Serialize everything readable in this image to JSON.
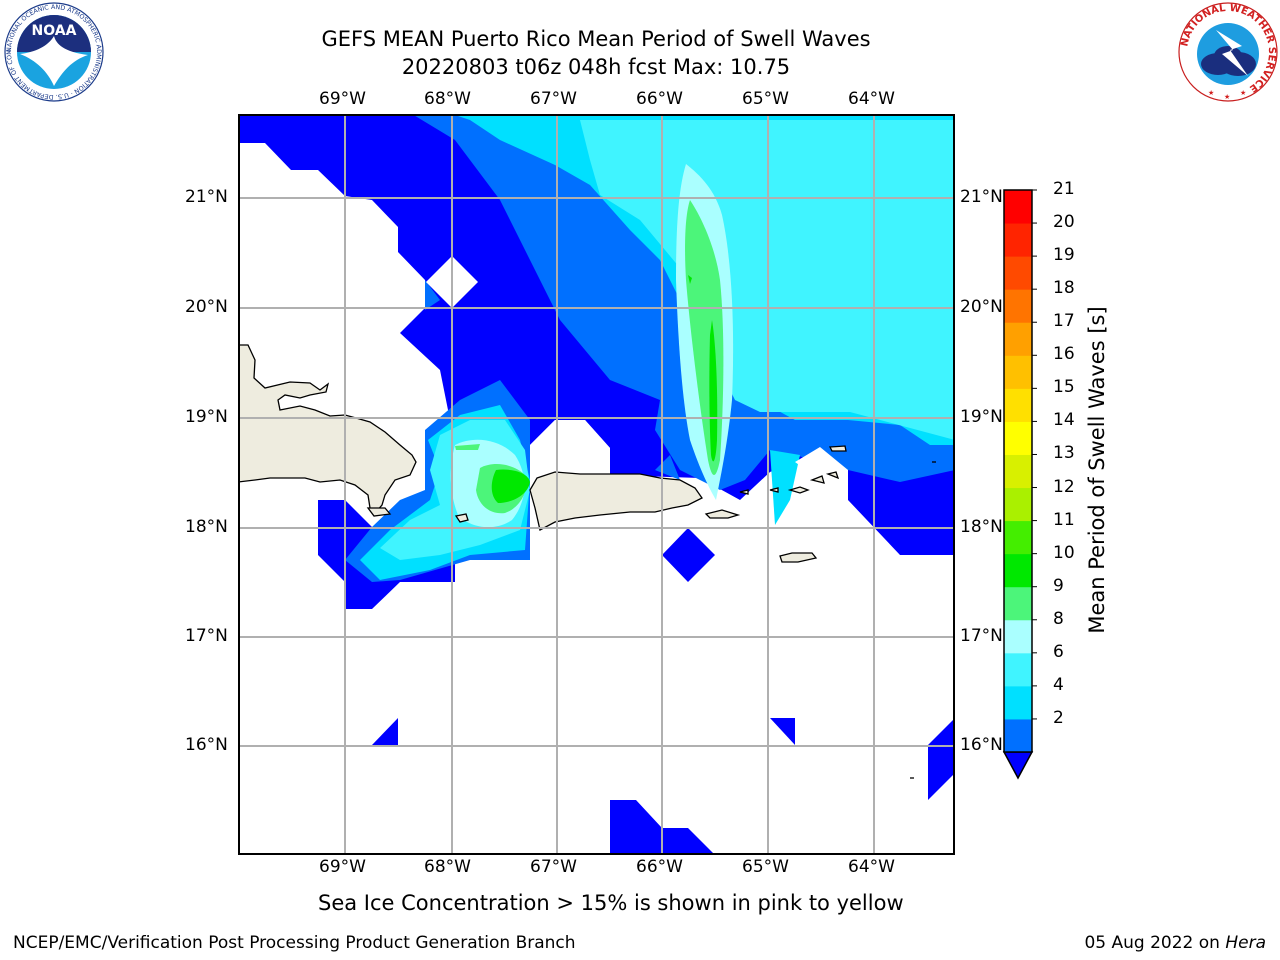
{
  "title": {
    "line1": "GEFS MEAN Puerto Rico Mean Period of Swell Waves",
    "line2": "20220803 t06z 048h fcst   Max: 10.75"
  },
  "axes": {
    "lon_labels": [
      "69°W",
      "68°W",
      "67°W",
      "66°W",
      "65°W",
      "64°W"
    ],
    "lat_labels": [
      "21°N",
      "20°N",
      "19°N",
      "18°N",
      "17°N",
      "16°N"
    ]
  },
  "colorbar": {
    "title": "Mean Period of Swell Waves [s]",
    "ticks": [
      "21",
      "20",
      "19",
      "18",
      "17",
      "16",
      "15",
      "14",
      "13",
      "12",
      "11",
      "10",
      "9",
      "8",
      "6",
      "4",
      "2"
    ],
    "colors": [
      "#0000ff",
      "#0070ff",
      "#00e0ff",
      "#40f4ff",
      "#aaffff",
      "#4cf57a",
      "#00e800",
      "#44ee00",
      "#aaf000",
      "#d8f000",
      "#ffff00",
      "#ffe000",
      "#ffc000",
      "#ffa000",
      "#ff7400",
      "#ff4a00",
      "#ff2400",
      "#ff0000"
    ]
  },
  "map_colors": {
    "land": "#eeecdf",
    "c_blue": "#0000ff",
    "c_lightblue": "#0070ff",
    "c_cyan": "#00e0ff",
    "c_cyan2": "#40f4ff",
    "c_paleblue": "#aaffff",
    "c_green": "#4cf57a",
    "c_brightgreen": "#00e800"
  },
  "logos": {
    "noaa_text": "NOAA",
    "noaa_ring": "NATIONAL OCEANIC AND ATMOSPHERIC ADMINISTRATION · U.S. DEPARTMENT OF COMMERCE",
    "nws_ring": "NATIONAL WEATHER SERVICE"
  },
  "footer": {
    "sea_ice_note": "Sea Ice Concentration > 15% is shown in pink to yellow",
    "left": "NCEP/EMC/Verification Post Processing Product Generation Branch",
    "right_date": "05 Aug 2022 on ",
    "right_host": "Hera"
  }
}
